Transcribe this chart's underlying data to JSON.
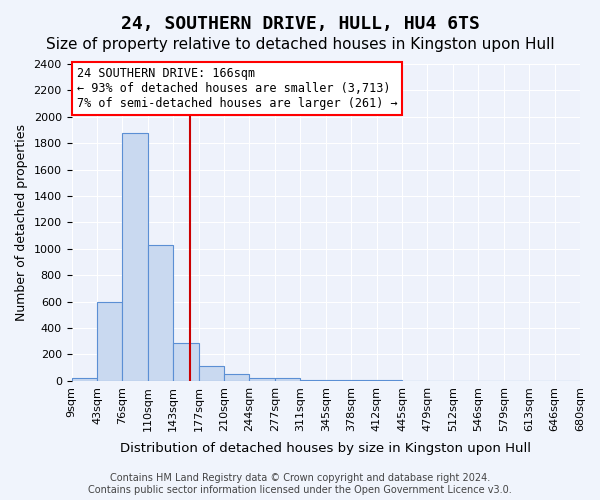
{
  "title": "24, SOUTHERN DRIVE, HULL, HU4 6TS",
  "subtitle": "Size of property relative to detached houses in Kingston upon Hull",
  "xlabel": "Distribution of detached houses by size in Kingston upon Hull",
  "ylabel": "Number of detached properties",
  "footer": "Contains HM Land Registry data © Crown copyright and database right 2024.\nContains public sector information licensed under the Open Government Licence v3.0.",
  "bin_labels": [
    "9sqm",
    "43sqm",
    "76sqm",
    "110sqm",
    "143sqm",
    "177sqm",
    "210sqm",
    "244sqm",
    "277sqm",
    "311sqm",
    "345sqm",
    "378sqm",
    "412sqm",
    "445sqm",
    "479sqm",
    "512sqm",
    "546sqm",
    "579sqm",
    "613sqm",
    "646sqm",
    "680sqm"
  ],
  "bar_values": [
    20,
    600,
    1880,
    1030,
    290,
    110,
    50,
    25,
    20,
    10,
    5,
    5,
    5,
    0,
    0,
    0,
    0,
    0,
    0,
    0
  ],
  "bar_color": "#c9d9f0",
  "bar_edge_color": "#5b8fd4",
  "bar_edge_width": 0.8,
  "red_line_color": "#cc0000",
  "annotation_text_line1": "24 SOUTHERN DRIVE: 166sqm",
  "annotation_text_line2": "← 93% of detached houses are smaller (3,713)",
  "annotation_text_line3": "7% of semi-detached houses are larger (261) →",
  "ylim": [
    0,
    2400
  ],
  "yticks": [
    0,
    200,
    400,
    600,
    800,
    1000,
    1200,
    1400,
    1600,
    1800,
    2000,
    2200,
    2400
  ],
  "background_color": "#eef2fb",
  "fig_background_color": "#f0f4fc",
  "grid_color": "#ffffff",
  "title_fontsize": 13,
  "subtitle_fontsize": 11,
  "axis_label_fontsize": 9,
  "tick_fontsize": 8,
  "annotation_fontsize": 8.5,
  "footer_fontsize": 7
}
